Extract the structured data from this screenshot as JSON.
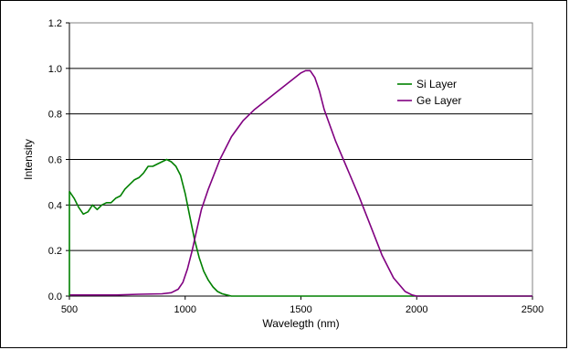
{
  "chart_data": {
    "type": "line",
    "title": "",
    "xlabel": "Wavelegth (nm)",
    "ylabel": "Intensity",
    "xlim": [
      500,
      2500
    ],
    "ylim": [
      0,
      1.2
    ],
    "x_ticks": [
      "500",
      "1000",
      "1500",
      "2000",
      "2500"
    ],
    "y_ticks": [
      "0.0",
      "0.2",
      "0.4",
      "0.6",
      "0.8",
      "1.0",
      "1.2"
    ],
    "grid": "horizontal",
    "legend_position": "top-right",
    "series": [
      {
        "name": "Si Layer",
        "color": "#008000",
        "x": [
          500,
          520,
          540,
          560,
          580,
          600,
          620,
          640,
          660,
          680,
          700,
          720,
          740,
          760,
          780,
          800,
          820,
          840,
          860,
          880,
          900,
          920,
          940,
          960,
          980,
          1000,
          1020,
          1040,
          1060,
          1080,
          1100,
          1120,
          1140,
          1160,
          1180,
          1200,
          1300,
          1500,
          2000,
          2500
        ],
        "y": [
          0.46,
          0.43,
          0.39,
          0.36,
          0.37,
          0.4,
          0.38,
          0.4,
          0.41,
          0.41,
          0.43,
          0.44,
          0.47,
          0.49,
          0.51,
          0.52,
          0.54,
          0.57,
          0.57,
          0.58,
          0.59,
          0.6,
          0.59,
          0.57,
          0.53,
          0.45,
          0.35,
          0.25,
          0.17,
          0.11,
          0.07,
          0.04,
          0.02,
          0.01,
          0.005,
          0.0,
          0.0,
          0.0,
          0.0,
          0.0
        ]
      },
      {
        "name": "Ge Layer",
        "color": "#800080",
        "x": [
          500,
          700,
          800,
          900,
          940,
          970,
          990,
          1010,
          1030,
          1050,
          1070,
          1100,
          1150,
          1200,
          1250,
          1300,
          1350,
          1400,
          1450,
          1500,
          1520,
          1540,
          1560,
          1580,
          1600,
          1650,
          1700,
          1750,
          1800,
          1850,
          1900,
          1950,
          1980,
          2000,
          2100,
          2500
        ],
        "y": [
          0.005,
          0.005,
          0.008,
          0.01,
          0.015,
          0.03,
          0.06,
          0.12,
          0.2,
          0.29,
          0.38,
          0.47,
          0.6,
          0.7,
          0.77,
          0.82,
          0.86,
          0.9,
          0.94,
          0.98,
          0.99,
          0.99,
          0.96,
          0.9,
          0.82,
          0.68,
          0.56,
          0.44,
          0.31,
          0.18,
          0.08,
          0.02,
          0.005,
          0.0,
          0.0,
          0.0
        ]
      }
    ]
  }
}
